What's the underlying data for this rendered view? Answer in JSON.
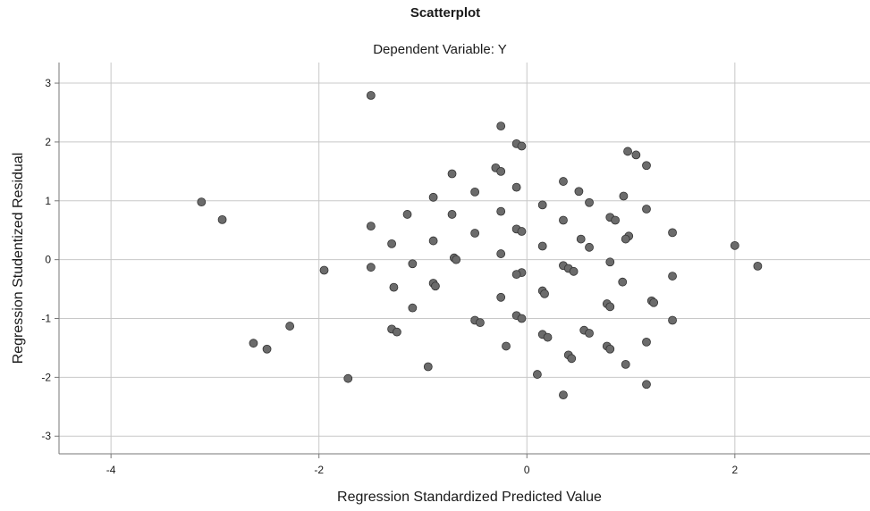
{
  "chart_data": {
    "type": "scatter",
    "title": "Scatterplot",
    "subtitle": "Dependent Variable: Y",
    "xlabel": "Regression Standardized Predicted Value",
    "ylabel": "Regression Studentized Residual",
    "xlim": [
      -4.5,
      3.3
    ],
    "ylim": [
      -3.3,
      3.35
    ],
    "x_ticks": [
      -4,
      -2,
      0,
      2
    ],
    "x_tick_labels": [
      "-4",
      "-2",
      "0",
      "2"
    ],
    "y_ticks": [
      -3,
      -2,
      -1,
      0,
      1,
      2,
      3
    ],
    "y_tick_labels": [
      "-3",
      "-2",
      "-1",
      "0",
      "1",
      "2",
      "3"
    ],
    "grid": true,
    "marker_color": "#6b6b6b",
    "points": [
      [
        -1.5,
        2.79
      ],
      [
        -0.25,
        2.27
      ],
      [
        -0.1,
        1.97
      ],
      [
        -0.05,
        1.93
      ],
      [
        0.97,
        1.84
      ],
      [
        1.05,
        1.78
      ],
      [
        1.15,
        1.6
      ],
      [
        -0.72,
        1.46
      ],
      [
        -0.3,
        1.56
      ],
      [
        -0.25,
        1.5
      ],
      [
        0.35,
        1.33
      ],
      [
        0.5,
        1.16
      ],
      [
        0.93,
        1.08
      ],
      [
        -0.5,
        1.15
      ],
      [
        -0.1,
        1.23
      ],
      [
        0.6,
        0.97
      ],
      [
        -0.9,
        1.06
      ],
      [
        0.15,
        0.93
      ],
      [
        1.15,
        0.86
      ],
      [
        -3.13,
        0.98
      ],
      [
        -2.93,
        0.68
      ],
      [
        -1.15,
        0.77
      ],
      [
        -0.25,
        0.82
      ],
      [
        0.35,
        0.67
      ],
      [
        -0.72,
        0.77
      ],
      [
        0.8,
        0.72
      ],
      [
        0.85,
        0.67
      ],
      [
        -1.5,
        0.57
      ],
      [
        -0.1,
        0.52
      ],
      [
        -0.05,
        0.48
      ],
      [
        1.4,
        0.46
      ],
      [
        -0.5,
        0.45
      ],
      [
        0.98,
        0.4
      ],
      [
        0.95,
        0.35
      ],
      [
        0.52,
        0.35
      ],
      [
        -0.9,
        0.32
      ],
      [
        -1.3,
        0.27
      ],
      [
        0.15,
        0.23
      ],
      [
        0.6,
        0.21
      ],
      [
        2.0,
        0.24
      ],
      [
        -0.25,
        0.1
      ],
      [
        -0.7,
        0.03
      ],
      [
        -0.68,
        0.0
      ],
      [
        0.8,
        -0.04
      ],
      [
        -1.1,
        -0.07
      ],
      [
        0.35,
        -0.1
      ],
      [
        0.4,
        -0.15
      ],
      [
        0.45,
        -0.2
      ],
      [
        -1.5,
        -0.13
      ],
      [
        -1.95,
        -0.18
      ],
      [
        -0.05,
        -0.22
      ],
      [
        -0.1,
        -0.25
      ],
      [
        2.22,
        -0.11
      ],
      [
        1.4,
        -0.28
      ],
      [
        0.92,
        -0.38
      ],
      [
        -0.9,
        -0.4
      ],
      [
        -0.88,
        -0.45
      ],
      [
        -1.28,
        -0.47
      ],
      [
        0.15,
        -0.53
      ],
      [
        0.17,
        -0.58
      ],
      [
        -0.25,
        -0.64
      ],
      [
        1.2,
        -0.7
      ],
      [
        1.22,
        -0.73
      ],
      [
        0.77,
        -0.75
      ],
      [
        0.8,
        -0.8
      ],
      [
        -1.1,
        -0.82
      ],
      [
        -0.1,
        -0.95
      ],
      [
        -0.05,
        -1.0
      ],
      [
        -0.5,
        -1.03
      ],
      [
        -0.45,
        -1.07
      ],
      [
        1.4,
        -1.03
      ],
      [
        -1.3,
        -1.18
      ],
      [
        -1.25,
        -1.23
      ],
      [
        0.55,
        -1.2
      ],
      [
        0.6,
        -1.25
      ],
      [
        0.15,
        -1.27
      ],
      [
        0.2,
        -1.32
      ],
      [
        -2.28,
        -1.13
      ],
      [
        -2.63,
        -1.42
      ],
      [
        -2.5,
        -1.52
      ],
      [
        1.15,
        -1.4
      ],
      [
        -0.2,
        -1.47
      ],
      [
        0.77,
        -1.47
      ],
      [
        0.8,
        -1.52
      ],
      [
        0.4,
        -1.62
      ],
      [
        0.43,
        -1.68
      ],
      [
        0.95,
        -1.78
      ],
      [
        -0.95,
        -1.82
      ],
      [
        0.1,
        -1.95
      ],
      [
        -1.72,
        -2.02
      ],
      [
        1.15,
        -2.12
      ],
      [
        0.35,
        -2.3
      ]
    ]
  }
}
